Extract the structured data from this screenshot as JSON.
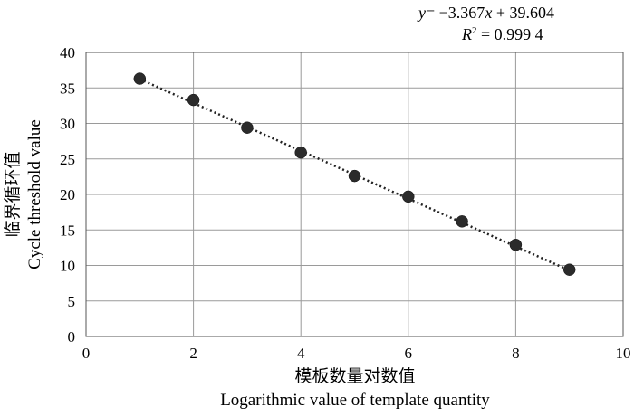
{
  "chart_data": {
    "type": "scatter",
    "x": [
      1,
      2,
      3,
      4,
      5,
      6,
      7,
      8,
      9
    ],
    "y": [
      36.3,
      33.3,
      29.4,
      25.9,
      22.6,
      19.7,
      16.2,
      12.9,
      9.4
    ],
    "xlim": [
      0,
      10
    ],
    "ylim": [
      0,
      40
    ],
    "xticks": [
      0,
      2,
      4,
      6,
      8,
      10
    ],
    "yticks": [
      0,
      5,
      10,
      15,
      20,
      25,
      30,
      35,
      40
    ],
    "xlabel_cn": "模板数量对数值",
    "xlabel": "Logarithmic value of template quantity",
    "ylabel_cn": "临界循环值",
    "ylabel": "Cycle threshold value",
    "grid": true,
    "trendline": {
      "slope": -3.367,
      "intercept": 39.604,
      "style": "dotted"
    },
    "equation_text": "= −3.367",
    "equation_var_y": "y",
    "equation_var_x": "x",
    "equation_rest": " + 39.604",
    "r2_var": "R",
    "r2_text": " = 0.999 4"
  }
}
